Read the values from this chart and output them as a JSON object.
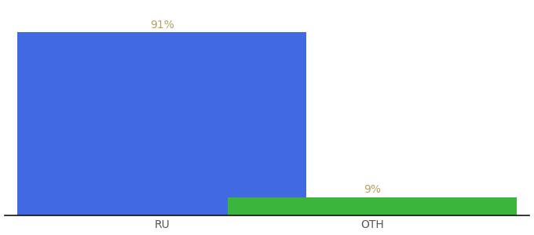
{
  "categories": [
    "RU",
    "OTH"
  ],
  "values": [
    91,
    9
  ],
  "bar_colors": [
    "#4169E1",
    "#3CB53C"
  ],
  "labels": [
    "91%",
    "9%"
  ],
  "background_color": "#ffffff",
  "ylim": [
    0,
    105
  ],
  "label_fontsize": 10,
  "tick_fontsize": 10,
  "label_color": "#b8a060",
  "tick_color": "#555555",
  "axis_line_color": "#111111",
  "bar_width": 0.55,
  "x_positions": [
    0.3,
    0.7
  ]
}
